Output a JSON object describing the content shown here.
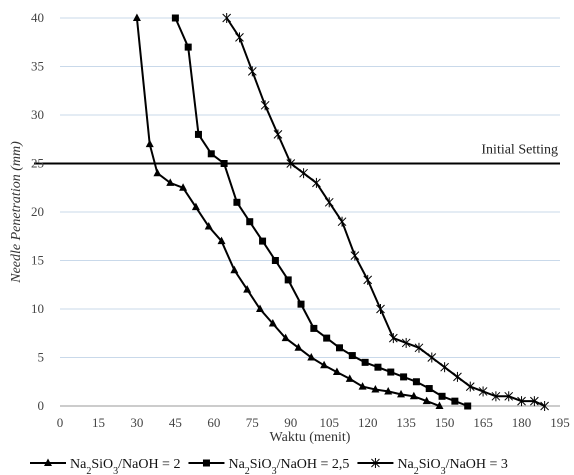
{
  "chart_data": {
    "type": "line",
    "title": "",
    "xlabel": "Waktu (menit)",
    "ylabel": "Needle Penetration (mm)",
    "xlim": [
      0,
      195
    ],
    "ylim": [
      0,
      40
    ],
    "xticks": [
      0,
      15,
      30,
      45,
      60,
      75,
      90,
      105,
      120,
      135,
      150,
      165,
      180,
      195
    ],
    "yticks": [
      0,
      5,
      10,
      15,
      20,
      25,
      30,
      35,
      40
    ],
    "grid": "horizontal",
    "legend_position": "bottom",
    "reference_line": {
      "y": 25,
      "label": "Initial Setting"
    },
    "series": [
      {
        "name": "Na2SiO3/NaOH = 2",
        "legend_parts": [
          "Na",
          "2",
          "SiO",
          "3",
          "/NaOH = 2"
        ],
        "marker": "triangle",
        "points": [
          [
            30,
            40
          ],
          [
            35,
            27
          ],
          [
            38,
            24
          ],
          [
            43,
            23
          ],
          [
            48,
            22.5
          ],
          [
            53,
            20.5
          ],
          [
            58,
            18.5
          ],
          [
            63,
            17
          ],
          [
            68,
            14
          ],
          [
            73,
            12
          ],
          [
            78,
            10
          ],
          [
            83,
            8.5
          ],
          [
            88,
            7
          ],
          [
            93,
            6
          ],
          [
            98,
            5
          ],
          [
            103,
            4.2
          ],
          [
            108,
            3.5
          ],
          [
            113,
            2.8
          ],
          [
            118,
            2
          ],
          [
            123,
            1.7
          ],
          [
            128,
            1.5
          ],
          [
            133,
            1.2
          ],
          [
            138,
            1
          ],
          [
            143,
            0.5
          ],
          [
            148,
            0
          ]
        ]
      },
      {
        "name": "Na2SiO3/NaOH = 2,5",
        "legend_parts": [
          "Na",
          "2",
          "SiO",
          "3",
          "/NaOH = 2,5"
        ],
        "marker": "square",
        "points": [
          [
            45,
            40
          ],
          [
            50,
            37
          ],
          [
            54,
            28
          ],
          [
            59,
            26
          ],
          [
            64,
            25
          ],
          [
            69,
            21
          ],
          [
            74,
            19
          ],
          [
            79,
            17
          ],
          [
            84,
            15
          ],
          [
            89,
            13
          ],
          [
            94,
            10.5
          ],
          [
            99,
            8
          ],
          [
            104,
            7
          ],
          [
            109,
            6
          ],
          [
            114,
            5.2
          ],
          [
            119,
            4.5
          ],
          [
            124,
            4
          ],
          [
            129,
            3.5
          ],
          [
            134,
            3
          ],
          [
            139,
            2.5
          ],
          [
            144,
            1.8
          ],
          [
            149,
            1
          ],
          [
            154,
            0.5
          ],
          [
            159,
            0
          ]
        ]
      },
      {
        "name": "Na2SiO3/NaOH = 3",
        "legend_parts": [
          "Na",
          "2",
          "SiO",
          "3",
          "/NaOH = 3"
        ],
        "marker": "star",
        "points": [
          [
            65,
            40
          ],
          [
            70,
            38
          ],
          [
            75,
            34.5
          ],
          [
            80,
            31
          ],
          [
            85,
            28
          ],
          [
            90,
            25
          ],
          [
            95,
            24
          ],
          [
            100,
            23
          ],
          [
            105,
            21
          ],
          [
            110,
            19
          ],
          [
            115,
            15.5
          ],
          [
            120,
            13
          ],
          [
            125,
            10
          ],
          [
            130,
            7
          ],
          [
            135,
            6.5
          ],
          [
            140,
            6
          ],
          [
            145,
            5
          ],
          [
            150,
            4
          ],
          [
            155,
            3
          ],
          [
            160,
            2
          ],
          [
            165,
            1.5
          ],
          [
            170,
            1
          ],
          [
            175,
            1
          ],
          [
            180,
            0.5
          ],
          [
            185,
            0.5
          ],
          [
            189,
            0
          ]
        ]
      }
    ]
  }
}
